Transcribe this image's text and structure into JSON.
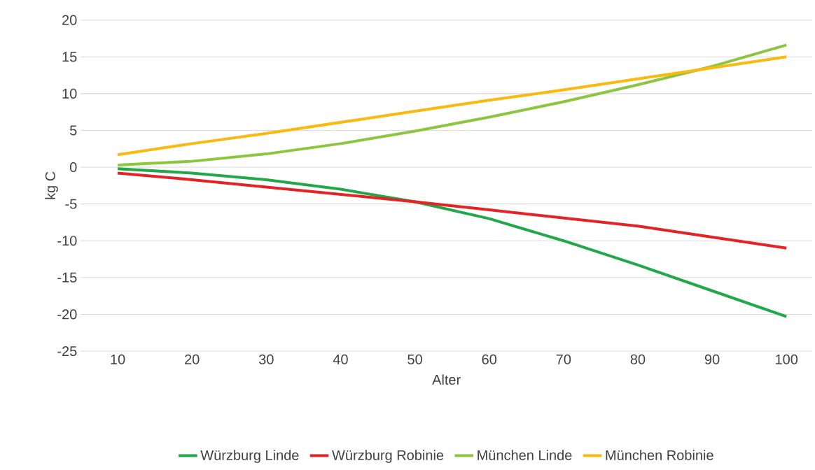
{
  "chart_data": {
    "type": "line",
    "xlabel": "Alter",
    "ylabel": "kg C",
    "categories": [
      "10",
      "20",
      "30",
      "40",
      "50",
      "60",
      "70",
      "80",
      "90",
      "100"
    ],
    "series": [
      {
        "name": "Würzburg Linde",
        "color": "#22a849",
        "values": [
          -0.2,
          -0.8,
          -1.7,
          -3.0,
          -4.7,
          -7.0,
          -10.0,
          -13.3,
          -16.8,
          -20.3
        ]
      },
      {
        "name": "Würzburg Robinie",
        "color": "#e42326",
        "values": [
          -0.8,
          -1.7,
          -2.7,
          -3.7,
          -4.7,
          -5.8,
          -6.9,
          -8.0,
          -9.5,
          -11.0
        ]
      },
      {
        "name": "München Linde",
        "color": "#8cc63f",
        "values": [
          0.3,
          0.8,
          1.8,
          3.2,
          4.9,
          6.8,
          8.9,
          11.2,
          13.7,
          16.6
        ]
      },
      {
        "name": "München Robinie",
        "color": "#f9b90f",
        "values": [
          1.7,
          3.2,
          4.6,
          6.1,
          7.6,
          9.1,
          10.5,
          12.0,
          13.5,
          15.0
        ]
      }
    ],
    "ylim": [
      -25,
      20
    ],
    "yticks": [
      -25,
      -20,
      -15,
      -10,
      -5,
      0,
      5,
      10,
      15,
      20
    ],
    "grid": "y",
    "legend": "bottom"
  }
}
